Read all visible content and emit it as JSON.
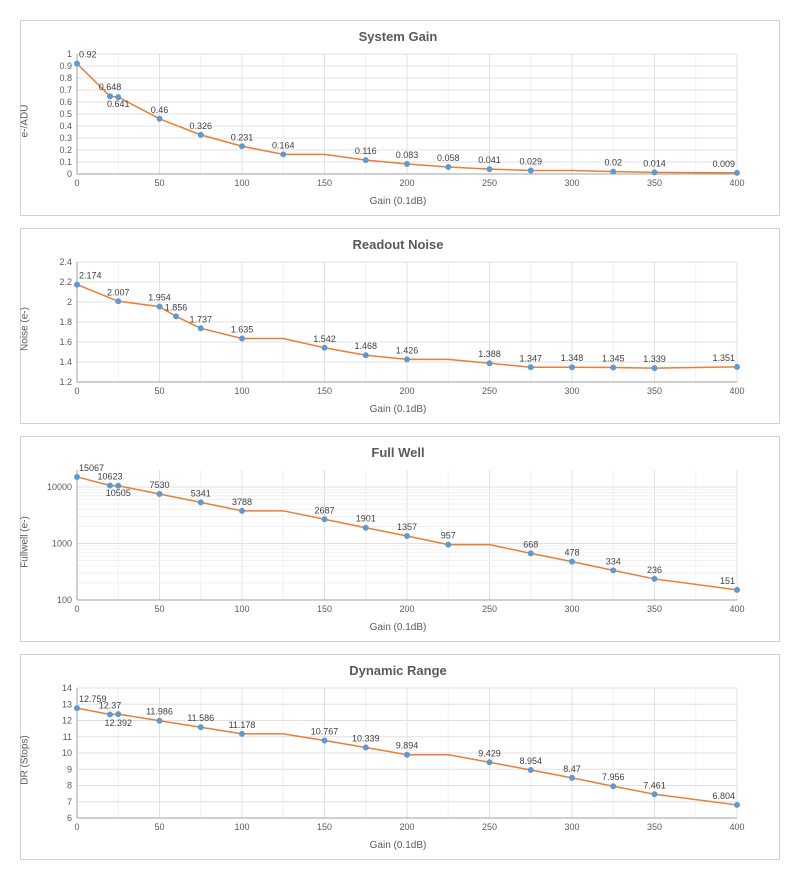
{
  "charts": [
    {
      "key": "system_gain",
      "title": "System Gain",
      "xlabel": "Gain (0.1dB)",
      "ylabel": "e-/ADU",
      "type": "line",
      "xlim": [
        0,
        400
      ],
      "xtick_step": 50,
      "ylim": [
        0,
        1
      ],
      "ytick_step": 0.1,
      "yscale": "linear",
      "height": 120,
      "line_color": "#ed7d31",
      "marker_color": "#5b9bd5",
      "grid_color": "#e0e0e0",
      "minor_grid_color": "#f0f0f0",
      "background_color": "#ffffff",
      "x": [
        0,
        20,
        25,
        50,
        75,
        100,
        125,
        150,
        175,
        200,
        225,
        250,
        275,
        300,
        325,
        350,
        400
      ],
      "y": [
        0.92,
        0.648,
        0.641,
        0.46,
        0.326,
        0.231,
        0.164,
        0.164,
        0.116,
        0.083,
        0.058,
        0.041,
        0.029,
        0.029,
        0.02,
        0.014,
        0.009
      ],
      "labels": [
        "0.92",
        "0.648",
        "0.641",
        "0.46",
        "0.326",
        "0.231",
        "0.164",
        "",
        "0.116",
        "0.083",
        "0.058",
        "0.041",
        "0.029",
        "",
        "0.02",
        "0.014",
        "0.009"
      ],
      "label_dy": [
        -6,
        -6,
        10,
        -6,
        -6,
        -6,
        -6,
        0,
        -6,
        -6,
        -6,
        -6,
        -6,
        0,
        -6,
        -6,
        -6
      ]
    },
    {
      "key": "readout_noise",
      "title": "Readout Noise",
      "xlabel": "Gain (0.1dB)",
      "ylabel": "Noise (e-)",
      "type": "line",
      "xlim": [
        0,
        400
      ],
      "xtick_step": 50,
      "ylim": [
        1.2,
        2.4
      ],
      "ytick_step": 0.2,
      "yscale": "linear",
      "height": 120,
      "line_color": "#ed7d31",
      "marker_color": "#5b9bd5",
      "grid_color": "#e0e0e0",
      "minor_grid_color": "#f0f0f0",
      "background_color": "#ffffff",
      "x": [
        0,
        25,
        50,
        60,
        75,
        100,
        125,
        150,
        175,
        200,
        225,
        250,
        275,
        300,
        325,
        350,
        400
      ],
      "y": [
        2.174,
        2.007,
        1.954,
        1.856,
        1.737,
        1.635,
        1.635,
        1.542,
        1.468,
        1.426,
        1.426,
        1.388,
        1.347,
        1.348,
        1.345,
        1.339,
        1.351
      ],
      "labels": [
        "2.174",
        "2.007",
        "1.954",
        "1.856",
        "1.737",
        "1.635",
        "",
        "1.542",
        "1.468",
        "1.426",
        "",
        "1.388",
        "1.347",
        "1.348",
        "1.345",
        "1.339",
        "1.351"
      ],
      "label_dy": [
        -6,
        -6,
        -6,
        -6,
        -6,
        -6,
        0,
        -6,
        -6,
        -6,
        0,
        -6,
        -6,
        -6,
        -6,
        -6,
        -6
      ]
    },
    {
      "key": "full_well",
      "title": "Full Well",
      "xlabel": "Gain (0.1dB)",
      "ylabel": "Fullwell (e-)",
      "type": "line",
      "xlim": [
        0,
        400
      ],
      "xtick_step": 50,
      "ylim": [
        100,
        20000
      ],
      "yticks": [
        100,
        1000,
        10000
      ],
      "yscale": "log",
      "height": 130,
      "line_color": "#ed7d31",
      "marker_color": "#5b9bd5",
      "grid_color": "#e0e0e0",
      "minor_grid_color": "#f0f0f0",
      "background_color": "#ffffff",
      "x": [
        0,
        20,
        25,
        50,
        75,
        100,
        125,
        150,
        175,
        200,
        225,
        250,
        275,
        300,
        325,
        350,
        400
      ],
      "y": [
        15067,
        10623,
        10505,
        7530,
        5341,
        3788,
        3788,
        2687,
        1901,
        1357,
        957,
        957,
        668,
        478,
        334,
        236,
        151
      ],
      "labels": [
        "15067",
        "10623",
        "10505",
        "7530",
        "5341",
        "3788",
        "",
        "2687",
        "1901",
        "1357",
        "957",
        "",
        "668",
        "478",
        "334",
        "236",
        "151"
      ],
      "label_dy": [
        -6,
        -6,
        10,
        -6,
        -6,
        -6,
        0,
        -6,
        -6,
        -6,
        -6,
        0,
        -6,
        -6,
        -6,
        -6,
        -6
      ]
    },
    {
      "key": "dynamic_range",
      "title": "Dynamic Range",
      "xlabel": "Gain (0.1dB)",
      "ylabel": "DR (Stops)",
      "type": "line",
      "xlim": [
        0,
        400
      ],
      "xtick_step": 50,
      "ylim": [
        6,
        14
      ],
      "ytick_step": 1,
      "yscale": "linear",
      "height": 130,
      "line_color": "#ed7d31",
      "marker_color": "#5b9bd5",
      "grid_color": "#e0e0e0",
      "minor_grid_color": "#f0f0f0",
      "background_color": "#ffffff",
      "x": [
        0,
        20,
        25,
        50,
        75,
        100,
        125,
        150,
        175,
        200,
        225,
        250,
        275,
        300,
        325,
        350,
        400
      ],
      "y": [
        12.759,
        12.37,
        12.392,
        11.986,
        11.586,
        11.178,
        11.178,
        10.767,
        10.339,
        9.894,
        9.894,
        9.429,
        8.954,
        8.47,
        7.956,
        7.461,
        6.804
      ],
      "labels": [
        "12.759",
        "12.37",
        "12.392",
        "11.986",
        "11.586",
        "11.178",
        "",
        "10.767",
        "10.339",
        "9.894",
        "",
        "9.429",
        "8.954",
        "8.47",
        "7.956",
        "7.461",
        "6.804"
      ],
      "label_dy": [
        -6,
        -6,
        12,
        -6,
        -6,
        -6,
        0,
        -6,
        -6,
        -6,
        0,
        -6,
        -6,
        -6,
        -6,
        -6,
        -6
      ]
    }
  ],
  "plot_inner_width": 660,
  "title_fontsize": 13,
  "label_fontsize": 10,
  "tick_fontsize": 9,
  "datalabel_fontsize": 9
}
